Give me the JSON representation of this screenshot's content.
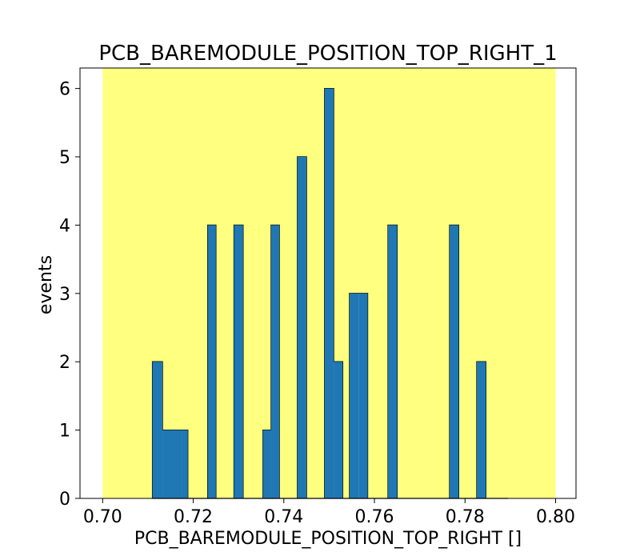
{
  "chart_data": {
    "type": "bar",
    "title": "PCB_BAREMODULE_POSITION_TOP_RIGHT_1",
    "xlabel": "PCB_BAREMODULE_POSITION_TOP_RIGHT []",
    "ylabel": "events",
    "xlim": [
      0.695,
      0.8045
    ],
    "ylim": [
      0,
      6.3
    ],
    "xticks": [
      0.7,
      0.72,
      0.74,
      0.76,
      0.78,
      0.8
    ],
    "xtick_labels": [
      "0.70",
      "0.72",
      "0.74",
      "0.76",
      "0.78",
      "0.80"
    ],
    "yticks": [
      0,
      1,
      2,
      3,
      4,
      5,
      6
    ],
    "ytick_labels": [
      "0",
      "1",
      "2",
      "3",
      "4",
      "5",
      "6"
    ],
    "shaded_region": {
      "x": [
        0.7,
        0.8
      ],
      "color": "#ffff80"
    },
    "bar_color": "#1f77b4",
    "edge_color": "#000000",
    "bins": [
      {
        "x0": 0.711,
        "x1": 0.7132,
        "count": 2
      },
      {
        "x0": 0.7132,
        "x1": 0.7154,
        "count": 1
      },
      {
        "x0": 0.7154,
        "x1": 0.7176,
        "count": 1
      },
      {
        "x0": 0.7176,
        "x1": 0.7188,
        "count": 1
      },
      {
        "x0": 0.7232,
        "x1": 0.725,
        "count": 4
      },
      {
        "x0": 0.729,
        "x1": 0.731,
        "count": 4
      },
      {
        "x0": 0.7354,
        "x1": 0.7372,
        "count": 1
      },
      {
        "x0": 0.7372,
        "x1": 0.739,
        "count": 4
      },
      {
        "x0": 0.743,
        "x1": 0.745,
        "count": 5
      },
      {
        "x0": 0.749,
        "x1": 0.751,
        "count": 6
      },
      {
        "x0": 0.751,
        "x1": 0.753,
        "count": 2
      },
      {
        "x0": 0.7545,
        "x1": 0.7565,
        "count": 3
      },
      {
        "x0": 0.7565,
        "x1": 0.7585,
        "count": 3
      },
      {
        "x0": 0.763,
        "x1": 0.765,
        "count": 4
      },
      {
        "x0": 0.7766,
        "x1": 0.7786,
        "count": 4
      },
      {
        "x0": 0.7826,
        "x1": 0.7846,
        "count": 2
      }
    ]
  }
}
